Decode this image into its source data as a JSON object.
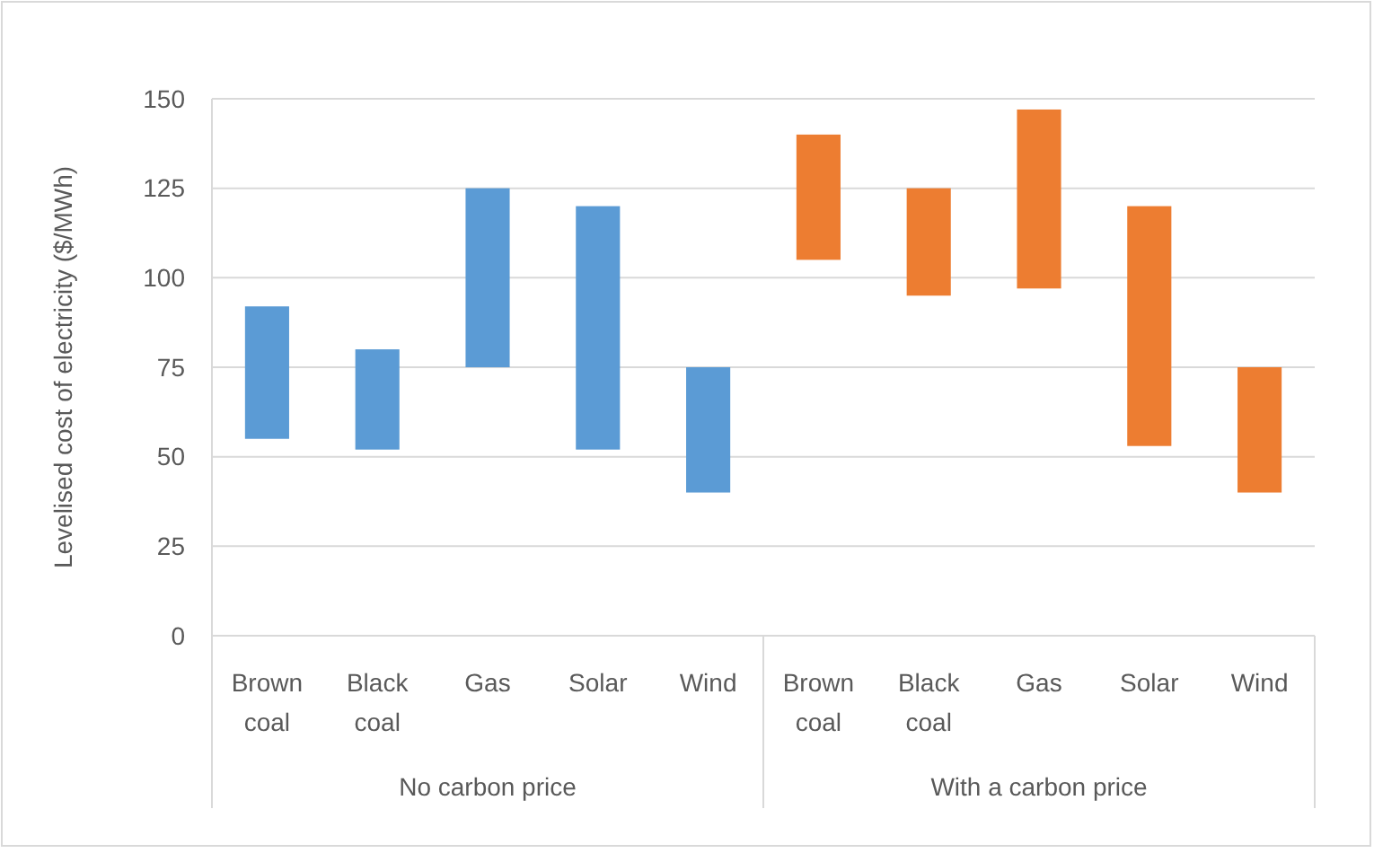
{
  "chart_data": {
    "type": "bar",
    "ylabel": "Levelised cost of electricity ($/MWh)",
    "categories": [
      "Brown coal",
      "Black coal",
      "Gas",
      "Solar",
      "Wind",
      "Brown coal",
      "Black coal",
      "Gas",
      "Solar",
      "Wind"
    ],
    "base": [
      55,
      52,
      75,
      52,
      40,
      105,
      95,
      97,
      53,
      40
    ],
    "values": [
      37,
      28,
      50,
      68,
      35,
      35,
      30,
      50,
      67,
      35
    ],
    "colors": [
      "#5b9bd5",
      "#5b9bd5",
      "#5b9bd5",
      "#5b9bd5",
      "#5b9bd5",
      "#ed7d31",
      "#ed7d31",
      "#ed7d31",
      "#ed7d31",
      "#ed7d31"
    ],
    "ylim": [
      0,
      150
    ],
    "yticks": [
      0,
      25,
      50,
      75,
      100,
      125,
      150
    ],
    "grid": "y",
    "annotations": [
      "No carbon price",
      "With a carbon price"
    ]
  }
}
